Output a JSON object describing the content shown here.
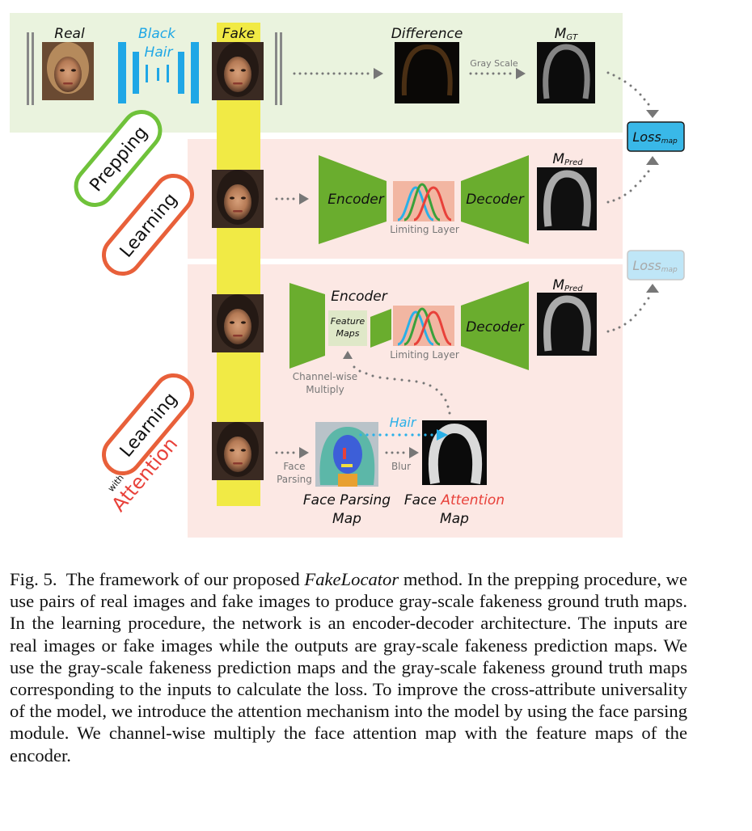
{
  "prepping": {
    "badge": "Prepping",
    "real_label": "Real",
    "black_hair_line1": "Black",
    "black_hair_line2": "Hair",
    "fake_label": "Fake",
    "difference_label": "Difference",
    "gray_scale_label": "Gray Scale",
    "mgt_main": "M",
    "mgt_sub": "GT"
  },
  "loss": {
    "main": "Loss",
    "sub": "map"
  },
  "learning": {
    "badge": "Learning",
    "encoder_label": "Encoder",
    "decoder_label": "Decoder",
    "limiting_layer_label": "Limiting Layer",
    "mpred_main": "M",
    "mpred_sub": "Pred"
  },
  "attention": {
    "badge": "Learning",
    "with_label": "with",
    "attention_label": "Attention",
    "encoder_label": "Encoder",
    "feature_maps_line1": "Feature",
    "feature_maps_line2": "Maps",
    "limiting_layer_label": "Limiting Layer",
    "decoder_label": "Decoder",
    "mpred_main": "M",
    "mpred_sub": "Pred",
    "channel_wise_line1": "Channel-wise",
    "channel_wise_line2": "Multiply",
    "face_parsing_small_line1": "Face",
    "face_parsing_small_line2": "Parsing",
    "blur_label": "Blur",
    "hair_label": "Hair",
    "face_parsing_map_line1": "Face Parsing",
    "face_parsing_map_line2": "Map",
    "face_word": "Face",
    "attention_word": "Attention",
    "map_word": "Map"
  },
  "caption": {
    "prefix": "Fig. 5. The framework of our proposed",
    "method": "FakeLocator",
    "text": "method. In the prepping procedure, we use pairs of real images and fake images to produce gray-scale fakeness ground truth maps. In the learning procedure, the network is an encoder-decoder architecture. The inputs are real images or fake images while the outputs are gray-scale fakeness prediction maps. We use the gray-scale fakeness prediction maps and the gray-scale fakeness ground truth maps corresponding to the inputs to calculate the loss. To improve the cross-attribute universality of the model, we introduce the attention mechanism into the model by using the face parsing module. We channel-wise multiply the face attention map with the feature maps of the encoder."
  },
  "colors": {
    "prep_band": "#eaf3de",
    "learn_band": "#fce8e4",
    "highlight": "#f1ea45",
    "encoder_green": "#6aad2e",
    "loss_blue": "#39b8e8",
    "badge_green": "#6fc23a",
    "badge_orange": "#e8603a",
    "attention_red": "#e8413a",
    "hair_blue": "#2ab0e8"
  }
}
